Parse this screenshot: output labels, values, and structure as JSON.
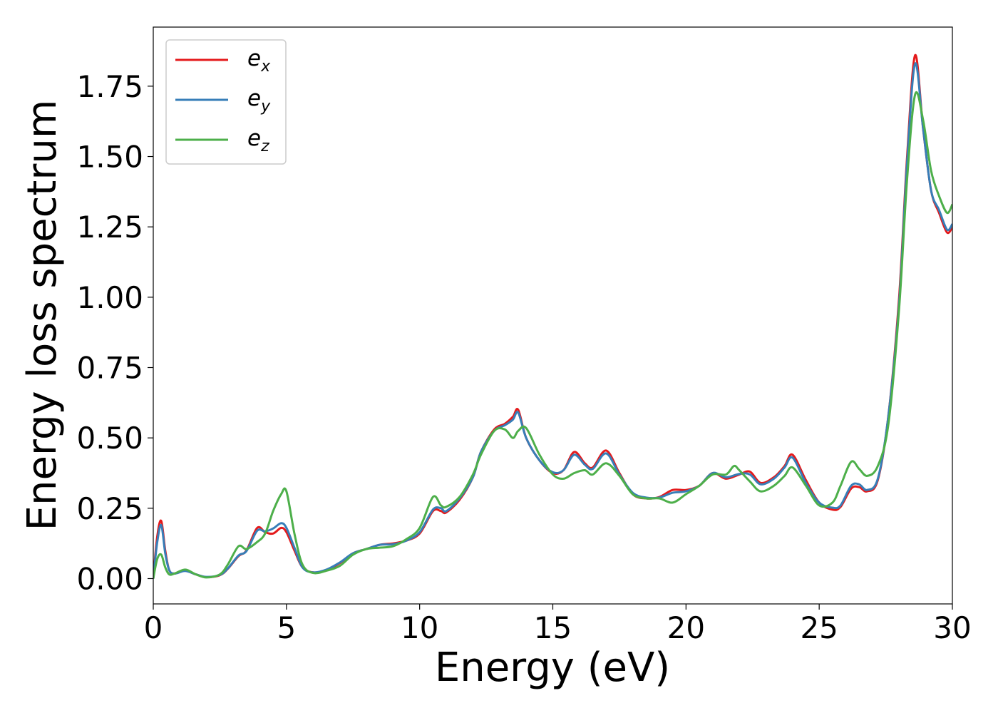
{
  "chart_data": {
    "type": "line",
    "xlabel": "Energy (eV)",
    "ylabel": "Energy loss spectrum",
    "xlim": [
      0,
      30
    ],
    "ylim": [
      -0.09,
      1.96
    ],
    "xticks": [
      0,
      5,
      10,
      15,
      20,
      25,
      30
    ],
    "xtick_labels": [
      "0",
      "5",
      "10",
      "15",
      "20",
      "25",
      "30"
    ],
    "yticks": [
      0.0,
      0.25,
      0.5,
      0.75,
      1.0,
      1.25,
      1.5,
      1.75
    ],
    "ytick_labels": [
      "0.00",
      "0.25",
      "0.50",
      "0.75",
      "1.00",
      "1.25",
      "1.50",
      "1.75"
    ],
    "grid": false,
    "legend_position": "top-left",
    "series": [
      {
        "base": "e",
        "sub": "x",
        "color": "#e41a1c",
        "points": [
          [
            0,
            0
          ],
          [
            0.15,
            0.15
          ],
          [
            0.3,
            0.205
          ],
          [
            0.45,
            0.1
          ],
          [
            0.6,
            0.03
          ],
          [
            0.8,
            0.018
          ],
          [
            1.2,
            0.028
          ],
          [
            1.6,
            0.015
          ],
          [
            2.0,
            0.005
          ],
          [
            2.5,
            0.012
          ],
          [
            2.8,
            0.035
          ],
          [
            3.2,
            0.08
          ],
          [
            3.5,
            0.1
          ],
          [
            3.9,
            0.18
          ],
          [
            4.2,
            0.165
          ],
          [
            4.5,
            0.16
          ],
          [
            4.8,
            0.18
          ],
          [
            5.0,
            0.165
          ],
          [
            5.3,
            0.1
          ],
          [
            5.6,
            0.04
          ],
          [
            6.0,
            0.022
          ],
          [
            6.5,
            0.03
          ],
          [
            7.0,
            0.055
          ],
          [
            7.5,
            0.09
          ],
          [
            8.0,
            0.105
          ],
          [
            8.5,
            0.12
          ],
          [
            9.0,
            0.125
          ],
          [
            9.5,
            0.135
          ],
          [
            10.0,
            0.16
          ],
          [
            10.5,
            0.24
          ],
          [
            10.8,
            0.24
          ],
          [
            11.0,
            0.235
          ],
          [
            11.5,
            0.28
          ],
          [
            12.0,
            0.36
          ],
          [
            12.3,
            0.45
          ],
          [
            12.8,
            0.53
          ],
          [
            13.2,
            0.55
          ],
          [
            13.5,
            0.575
          ],
          [
            13.7,
            0.6
          ],
          [
            14.0,
            0.5
          ],
          [
            14.5,
            0.42
          ],
          [
            15.0,
            0.375
          ],
          [
            15.4,
            0.385
          ],
          [
            15.8,
            0.45
          ],
          [
            16.2,
            0.41
          ],
          [
            16.5,
            0.395
          ],
          [
            17.0,
            0.455
          ],
          [
            17.5,
            0.375
          ],
          [
            18.0,
            0.3
          ],
          [
            18.5,
            0.285
          ],
          [
            19.0,
            0.29
          ],
          [
            19.5,
            0.315
          ],
          [
            20.0,
            0.315
          ],
          [
            20.5,
            0.33
          ],
          [
            21.0,
            0.375
          ],
          [
            21.5,
            0.355
          ],
          [
            22.0,
            0.37
          ],
          [
            22.4,
            0.38
          ],
          [
            22.8,
            0.34
          ],
          [
            23.3,
            0.36
          ],
          [
            23.7,
            0.4
          ],
          [
            24.0,
            0.44
          ],
          [
            24.5,
            0.35
          ],
          [
            25.0,
            0.27
          ],
          [
            25.5,
            0.245
          ],
          [
            25.8,
            0.255
          ],
          [
            26.2,
            0.32
          ],
          [
            26.5,
            0.325
          ],
          [
            26.8,
            0.31
          ],
          [
            27.2,
            0.35
          ],
          [
            27.6,
            0.58
          ],
          [
            28.0,
            1.0
          ],
          [
            28.3,
            1.5
          ],
          [
            28.6,
            1.86
          ],
          [
            28.9,
            1.6
          ],
          [
            29.2,
            1.38
          ],
          [
            29.5,
            1.3
          ],
          [
            29.8,
            1.23
          ],
          [
            30.0,
            1.25
          ]
        ]
      },
      {
        "base": "e",
        "sub": "y",
        "color": "#377eb8",
        "points": [
          [
            0,
            0
          ],
          [
            0.15,
            0.13
          ],
          [
            0.3,
            0.19
          ],
          [
            0.45,
            0.09
          ],
          [
            0.6,
            0.03
          ],
          [
            0.8,
            0.018
          ],
          [
            1.2,
            0.027
          ],
          [
            1.6,
            0.015
          ],
          [
            2.0,
            0.006
          ],
          [
            2.5,
            0.013
          ],
          [
            2.8,
            0.036
          ],
          [
            3.2,
            0.082
          ],
          [
            3.5,
            0.098
          ],
          [
            3.9,
            0.17
          ],
          [
            4.2,
            0.168
          ],
          [
            4.5,
            0.178
          ],
          [
            4.8,
            0.197
          ],
          [
            5.0,
            0.18
          ],
          [
            5.3,
            0.11
          ],
          [
            5.6,
            0.04
          ],
          [
            6.0,
            0.022
          ],
          [
            6.5,
            0.032
          ],
          [
            7.0,
            0.057
          ],
          [
            7.5,
            0.09
          ],
          [
            8.0,
            0.105
          ],
          [
            8.5,
            0.12
          ],
          [
            9.0,
            0.122
          ],
          [
            9.5,
            0.135
          ],
          [
            10.0,
            0.165
          ],
          [
            10.5,
            0.245
          ],
          [
            10.8,
            0.25
          ],
          [
            11.0,
            0.24
          ],
          [
            11.5,
            0.285
          ],
          [
            12.0,
            0.36
          ],
          [
            12.3,
            0.45
          ],
          [
            12.8,
            0.525
          ],
          [
            13.2,
            0.545
          ],
          [
            13.5,
            0.565
          ],
          [
            13.7,
            0.59
          ],
          [
            14.0,
            0.5
          ],
          [
            14.5,
            0.42
          ],
          [
            15.0,
            0.378
          ],
          [
            15.4,
            0.385
          ],
          [
            15.8,
            0.44
          ],
          [
            16.2,
            0.405
          ],
          [
            16.5,
            0.39
          ],
          [
            17.0,
            0.445
          ],
          [
            17.5,
            0.37
          ],
          [
            18.0,
            0.305
          ],
          [
            18.5,
            0.288
          ],
          [
            19.0,
            0.288
          ],
          [
            19.5,
            0.305
          ],
          [
            20.0,
            0.31
          ],
          [
            20.5,
            0.33
          ],
          [
            21.0,
            0.375
          ],
          [
            21.5,
            0.36
          ],
          [
            22.0,
            0.372
          ],
          [
            22.4,
            0.37
          ],
          [
            22.8,
            0.335
          ],
          [
            23.3,
            0.355
          ],
          [
            23.7,
            0.395
          ],
          [
            24.0,
            0.43
          ],
          [
            24.5,
            0.34
          ],
          [
            25.0,
            0.27
          ],
          [
            25.5,
            0.252
          ],
          [
            25.8,
            0.26
          ],
          [
            26.2,
            0.33
          ],
          [
            26.5,
            0.335
          ],
          [
            26.8,
            0.315
          ],
          [
            27.2,
            0.355
          ],
          [
            27.6,
            0.58
          ],
          [
            28.0,
            0.98
          ],
          [
            28.3,
            1.48
          ],
          [
            28.6,
            1.83
          ],
          [
            28.9,
            1.6
          ],
          [
            29.2,
            1.38
          ],
          [
            29.5,
            1.31
          ],
          [
            29.8,
            1.24
          ],
          [
            30.0,
            1.26
          ]
        ]
      },
      {
        "base": "e",
        "sub": "z",
        "color": "#4daf4a",
        "points": [
          [
            0,
            0
          ],
          [
            0.15,
            0.07
          ],
          [
            0.3,
            0.085
          ],
          [
            0.45,
            0.04
          ],
          [
            0.6,
            0.015
          ],
          [
            0.8,
            0.018
          ],
          [
            1.2,
            0.032
          ],
          [
            1.6,
            0.015
          ],
          [
            2.0,
            0.004
          ],
          [
            2.5,
            0.015
          ],
          [
            2.8,
            0.05
          ],
          [
            3.2,
            0.115
          ],
          [
            3.5,
            0.105
          ],
          [
            3.9,
            0.13
          ],
          [
            4.2,
            0.16
          ],
          [
            4.5,
            0.24
          ],
          [
            4.8,
            0.3
          ],
          [
            5.0,
            0.31
          ],
          [
            5.3,
            0.16
          ],
          [
            5.6,
            0.05
          ],
          [
            6.0,
            0.02
          ],
          [
            6.5,
            0.028
          ],
          [
            7.0,
            0.045
          ],
          [
            7.5,
            0.085
          ],
          [
            8.0,
            0.105
          ],
          [
            8.5,
            0.11
          ],
          [
            9.0,
            0.115
          ],
          [
            9.5,
            0.14
          ],
          [
            10.0,
            0.18
          ],
          [
            10.5,
            0.29
          ],
          [
            10.8,
            0.26
          ],
          [
            11.0,
            0.255
          ],
          [
            11.5,
            0.29
          ],
          [
            12.0,
            0.37
          ],
          [
            12.3,
            0.44
          ],
          [
            12.8,
            0.525
          ],
          [
            13.2,
            0.53
          ],
          [
            13.5,
            0.5
          ],
          [
            13.7,
            0.525
          ],
          [
            14.0,
            0.535
          ],
          [
            14.5,
            0.44
          ],
          [
            15.0,
            0.37
          ],
          [
            15.4,
            0.355
          ],
          [
            15.8,
            0.375
          ],
          [
            16.2,
            0.385
          ],
          [
            16.5,
            0.37
          ],
          [
            17.0,
            0.41
          ],
          [
            17.5,
            0.365
          ],
          [
            18.0,
            0.3
          ],
          [
            18.5,
            0.285
          ],
          [
            19.0,
            0.285
          ],
          [
            19.5,
            0.27
          ],
          [
            20.0,
            0.3
          ],
          [
            20.5,
            0.33
          ],
          [
            21.0,
            0.37
          ],
          [
            21.5,
            0.37
          ],
          [
            21.8,
            0.4
          ],
          [
            22.0,
            0.385
          ],
          [
            22.4,
            0.345
          ],
          [
            22.8,
            0.31
          ],
          [
            23.3,
            0.33
          ],
          [
            23.7,
            0.365
          ],
          [
            24.0,
            0.395
          ],
          [
            24.5,
            0.33
          ],
          [
            25.0,
            0.26
          ],
          [
            25.5,
            0.27
          ],
          [
            25.8,
            0.33
          ],
          [
            26.2,
            0.415
          ],
          [
            26.5,
            0.39
          ],
          [
            26.8,
            0.365
          ],
          [
            27.2,
            0.4
          ],
          [
            27.6,
            0.55
          ],
          [
            28.0,
            0.96
          ],
          [
            28.3,
            1.42
          ],
          [
            28.6,
            1.72
          ],
          [
            28.9,
            1.63
          ],
          [
            29.2,
            1.45
          ],
          [
            29.5,
            1.36
          ],
          [
            29.8,
            1.3
          ],
          [
            30.0,
            1.33
          ]
        ]
      }
    ]
  }
}
